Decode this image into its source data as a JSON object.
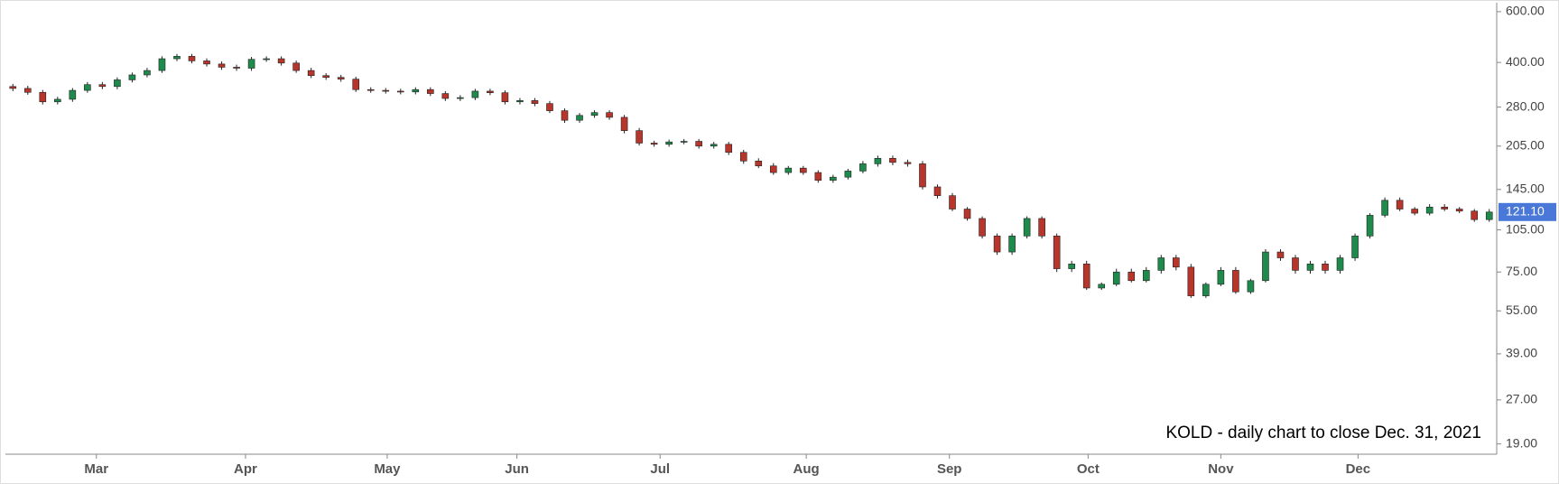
{
  "chart_data": {
    "type": "candlestick",
    "annotation": "KOLD - daily chart to close Dec. 31, 2021",
    "log_scale": true,
    "up_color": "#1e8a4c",
    "down_color": "#b8352b",
    "last_price": {
      "value": 121.1,
      "label": "121.10"
    },
    "last_price_color": "#4a78d8",
    "xlim": [
      -0.5,
      99.5
    ],
    "xticks": [
      {
        "value": 5.6,
        "label": "Mar"
      },
      {
        "value": 15.6,
        "label": "Apr"
      },
      {
        "value": 25.1,
        "label": "May"
      },
      {
        "value": 33.8,
        "label": "Jun"
      },
      {
        "value": 43.4,
        "label": "Jul"
      },
      {
        "value": 53.2,
        "label": "Aug"
      },
      {
        "value": 62.8,
        "label": "Sep"
      },
      {
        "value": 72.1,
        "label": "Oct"
      },
      {
        "value": 81.0,
        "label": "Nov"
      },
      {
        "value": 90.2,
        "label": "Dec"
      }
    ],
    "ylim": [
      17.5,
      644.5
    ],
    "yticks": [
      {
        "value": 600,
        "label": "600.00"
      },
      {
        "value": 400,
        "label": "400.00"
      },
      {
        "value": 280,
        "label": "280.00"
      },
      {
        "value": 205,
        "label": "205.00"
      },
      {
        "value": 145,
        "label": "145.00"
      },
      {
        "value": 105,
        "label": "105.00"
      },
      {
        "value": 75,
        "label": "75.00"
      },
      {
        "value": 55,
        "label": "55.00"
      },
      {
        "value": 39,
        "label": "39.00"
      },
      {
        "value": 27,
        "label": "27.00"
      },
      {
        "value": 19,
        "label": "19.00"
      }
    ],
    "open": [
      330,
      325,
      315,
      292,
      298,
      320,
      335,
      330,
      348,
      362,
      375,
      412,
      420,
      405,
      395,
      385,
      382,
      410,
      412,
      398,
      375,
      360,
      355,
      350,
      322,
      320,
      318,
      316,
      322,
      312,
      300,
      302,
      318,
      314,
      292,
      295,
      288,
      272,
      252,
      262,
      268,
      258,
      232,
      210,
      208,
      212,
      213,
      205,
      208,
      195,
      182,
      175,
      166,
      172,
      166,
      156,
      160,
      168,
      178,
      186,
      180,
      178,
      148,
      138,
      124,
      115,
      100,
      88,
      100,
      115,
      100,
      77,
      80,
      66,
      68,
      75,
      70,
      76,
      84,
      78,
      62,
      68,
      76,
      64,
      70,
      88,
      84,
      76,
      80,
      76,
      84,
      100,
      118,
      133,
      124,
      120,
      126,
      124,
      122,
      114
    ],
    "high": [
      337,
      332,
      321,
      304,
      326,
      342,
      342,
      355,
      369,
      383,
      420,
      428,
      428,
      413,
      403,
      393,
      418,
      420,
      420,
      406,
      383,
      367,
      362,
      357,
      328,
      326,
      324,
      328,
      328,
      318,
      308,
      324,
      324,
      320,
      301,
      301,
      294,
      277,
      267,
      273,
      273,
      263,
      237,
      214,
      216,
      217,
      217,
      212,
      212,
      199,
      186,
      179,
      175,
      175,
      169,
      163,
      171,
      182,
      190,
      190,
      184,
      182,
      151,
      141,
      126,
      117,
      102,
      102,
      117,
      117,
      102,
      82,
      82,
      69,
      77,
      77,
      78,
      86,
      86,
      80,
      69,
      78,
      78,
      71,
      90,
      90,
      86,
      82,
      82,
      86,
      102,
      120,
      136,
      136,
      126,
      129,
      129,
      126,
      124,
      124
    ],
    "low": [
      318,
      309,
      286,
      286,
      292,
      314,
      323,
      323,
      341,
      355,
      368,
      404,
      397,
      387,
      377,
      374,
      374,
      402,
      390,
      368,
      353,
      348,
      343,
      316,
      314,
      312,
      310,
      310,
      306,
      294,
      294,
      296,
      308,
      286,
      286,
      282,
      267,
      247,
      247,
      257,
      253,
      227,
      206,
      204,
      204,
      208,
      201,
      201,
      191,
      178,
      172,
      163,
      163,
      163,
      153,
      153,
      157,
      165,
      174,
      176,
      174,
      145,
      135,
      122,
      113,
      98,
      86,
      86,
      98,
      98,
      75,
      75,
      65,
      65,
      67,
      69,
      69,
      74,
      76,
      61,
      61,
      67,
      63,
      63,
      69,
      82,
      74,
      74,
      74,
      74,
      82,
      98,
      116,
      122,
      118,
      118,
      122,
      120,
      112,
      112
    ],
    "close": [
      325,
      315,
      292,
      298,
      320,
      335,
      330,
      348,
      362,
      375,
      412,
      420,
      405,
      395,
      385,
      382,
      410,
      412,
      398,
      375,
      360,
      355,
      350,
      322,
      320,
      318,
      316,
      322,
      312,
      300,
      302,
      318,
      314,
      292,
      295,
      288,
      272,
      252,
      262,
      268,
      258,
      232,
      210,
      208,
      212,
      213,
      205,
      208,
      195,
      182,
      175,
      166,
      172,
      166,
      156,
      160,
      168,
      178,
      186,
      180,
      178,
      148,
      138,
      124,
      115,
      100,
      88,
      100,
      115,
      100,
      77,
      80,
      66,
      68,
      75,
      70,
      76,
      84,
      78,
      62,
      68,
      76,
      64,
      70,
      88,
      84,
      76,
      80,
      76,
      84,
      100,
      118,
      133,
      124,
      120,
      126,
      124,
      122,
      114,
      121.1
    ]
  }
}
